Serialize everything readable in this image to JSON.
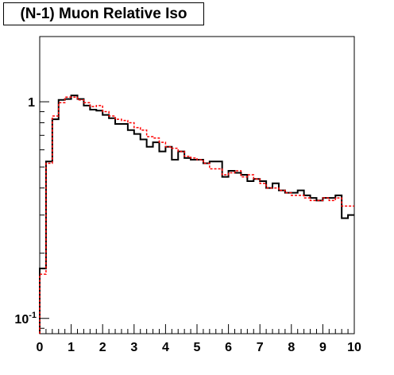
{
  "chart_data": {
    "type": "line",
    "title": "(N-1) Muon Relative Iso",
    "xlim": [
      0,
      10
    ],
    "ylim": [
      0.085,
      2
    ],
    "yscale": "log",
    "xticks": [
      "0",
      "1",
      "2",
      "3",
      "4",
      "5",
      "6",
      "7",
      "8",
      "9",
      "10"
    ],
    "yticks": [
      {
        "value": 1,
        "label": "1"
      },
      {
        "value": 0.1,
        "label": "10",
        "sup": "-1"
      }
    ],
    "bin_edges": [
      0,
      0.2,
      0.4,
      0.6,
      0.8,
      1.0,
      1.2,
      1.4,
      1.6,
      1.8,
      2.0,
      2.2,
      2.4,
      2.6,
      2.8,
      3.0,
      3.2,
      3.4,
      3.6,
      3.8,
      4.0,
      4.2,
      4.4,
      4.6,
      4.8,
      5.0,
      5.2,
      5.4,
      5.6,
      5.8,
      6.0,
      6.2,
      6.4,
      6.6,
      6.8,
      7.0,
      7.2,
      7.4,
      7.6,
      7.8,
      8.0,
      8.2,
      8.4,
      8.6,
      8.8,
      9.0,
      9.2,
      9.4,
      9.6,
      9.8,
      10.0
    ],
    "series": [
      {
        "color": "#000000",
        "style": "solid",
        "values": [
          0.17,
          0.53,
          0.83,
          1.02,
          1.03,
          1.07,
          1.03,
          0.96,
          0.92,
          0.91,
          0.87,
          0.84,
          0.79,
          0.79,
          0.74,
          0.71,
          0.67,
          0.62,
          0.65,
          0.59,
          0.62,
          0.54,
          0.59,
          0.55,
          0.54,
          0.54,
          0.52,
          0.53,
          0.53,
          0.45,
          0.48,
          0.47,
          0.46,
          0.43,
          0.44,
          0.43,
          0.4,
          0.42,
          0.39,
          0.38,
          0.38,
          0.39,
          0.37,
          0.36,
          0.35,
          0.36,
          0.36,
          0.37,
          0.29,
          0.3
        ]
      },
      {
        "color": "#ff0000",
        "style": "dashed",
        "values": [
          0.16,
          0.52,
          0.86,
          0.99,
          1.05,
          1.05,
          1.02,
          0.99,
          0.95,
          0.96,
          0.9,
          0.86,
          0.83,
          0.82,
          0.8,
          0.76,
          0.74,
          0.69,
          0.68,
          0.65,
          0.62,
          0.61,
          0.59,
          0.56,
          0.55,
          0.54,
          0.52,
          0.49,
          0.49,
          0.46,
          0.47,
          0.48,
          0.45,
          0.46,
          0.44,
          0.42,
          0.4,
          0.4,
          0.39,
          0.38,
          0.37,
          0.37,
          0.36,
          0.35,
          0.35,
          0.36,
          0.35,
          0.36,
          0.33,
          0.33
        ]
      }
    ]
  }
}
